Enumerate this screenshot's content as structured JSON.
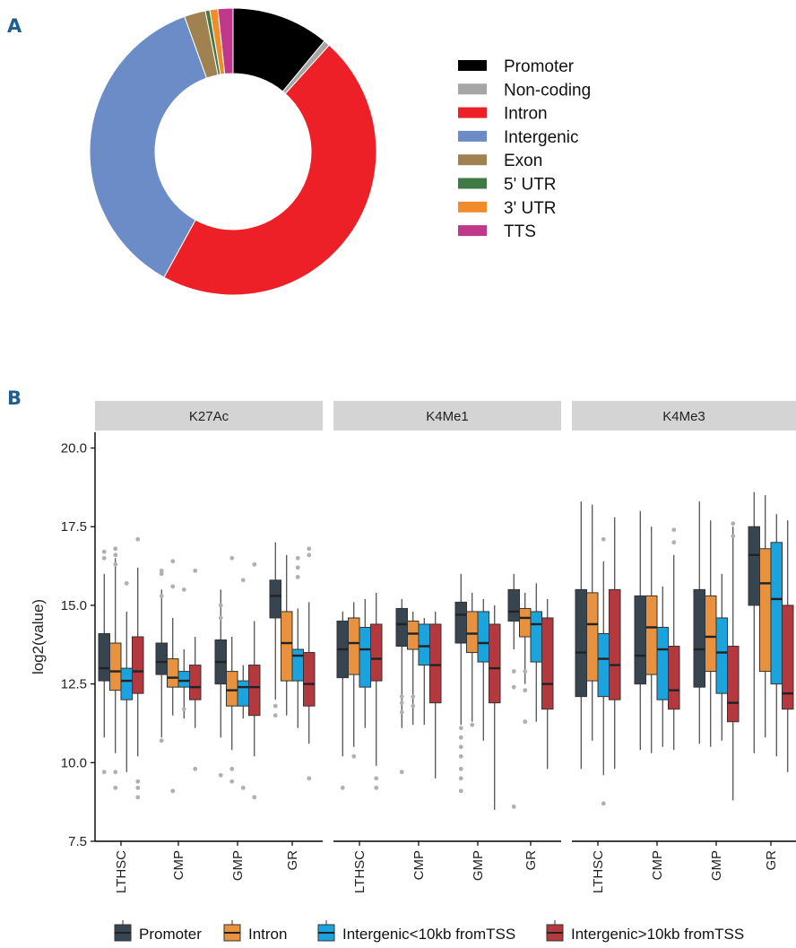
{
  "chart_data": [
    {
      "panel": "A",
      "type": "pie",
      "donut": true,
      "slices": [
        {
          "label": "Promoter",
          "value": 11.0,
          "color": "#000000"
        },
        {
          "label": "Non-coding",
          "value": 0.7,
          "color": "#a6a6a6"
        },
        {
          "label": "Intron",
          "value": 46.3,
          "color": "#ee2027"
        },
        {
          "label": "Intergenic",
          "value": 36.5,
          "color": "#6b8cc7"
        },
        {
          "label": "Exon",
          "value": 2.4,
          "color": "#a08250"
        },
        {
          "label": "5' UTR",
          "value": 0.5,
          "color": "#3f7a45"
        },
        {
          "label": "3' UTR",
          "value": 0.9,
          "color": "#f08c2a"
        },
        {
          "label": "TTS",
          "value": 1.7,
          "color": "#c0388a"
        }
      ],
      "legend_placement": "right"
    },
    {
      "panel": "B",
      "type": "box",
      "ylabel": "log2(value)",
      "ylim": [
        7.5,
        20.5
      ],
      "yticks": [
        7.5,
        10.0,
        12.5,
        15.0,
        17.5,
        20.0
      ],
      "facets": [
        "K27Ac",
        "K4Me1",
        "K4Me3"
      ],
      "categories": [
        "LTHSC",
        "CMP",
        "GMP",
        "GR"
      ],
      "series": [
        {
          "name": "Promoter",
          "color": "#36454f"
        },
        {
          "name": "Intron",
          "color": "#e8913e"
        },
        {
          "name": "Intergenic<10kb fromTSS",
          "color": "#1aa3dc"
        },
        {
          "name": "Intergenic>10kb fromTSS",
          "color": "#b3393f"
        }
      ],
      "boxes": [
        [
          [
            [
              10.8,
              12.6,
              13.0,
              14.1,
              16.0,
              [
                9.7,
                16.5,
                16.7
              ]
            ],
            [
              10.3,
              12.3,
              12.9,
              13.8,
              16.5,
              [
                9.2,
                9.7,
                16.3,
                16.6,
                16.8
              ]
            ],
            [
              9.7,
              12.0,
              12.6,
              13.0,
              14.8,
              [
                15.7
              ]
            ],
            [
              10.2,
              12.2,
              12.9,
              14.0,
              16.2,
              [
                8.9,
                9.2,
                9.4,
                17.1
              ]
            ]
          ],
          [
            [
              10.8,
              12.8,
              13.2,
              13.8,
              15.5,
              [
                10.7,
                15.3,
                16.0,
                16.1
              ]
            ],
            [
              11.5,
              12.4,
              12.7,
              13.3,
              14.6,
              [
                9.1,
                15.6,
                16.4
              ]
            ],
            [
              11.4,
              12.4,
              12.6,
              12.9,
              13.6,
              [
                11.7,
                15.5
              ]
            ],
            [
              11.1,
              12.0,
              12.4,
              13.1,
              14.0,
              [
                9.8,
                16.1
              ]
            ]
          ],
          [
            [
              10.8,
              12.5,
              13.2,
              13.9,
              15.5,
              [
                9.6,
                14.6,
                15.0
              ]
            ],
            [
              10.4,
              11.8,
              12.3,
              12.9,
              14.0,
              [
                9.4,
                9.8,
                16.5
              ]
            ],
            [
              11.4,
              11.8,
              12.4,
              12.6,
              13.1,
              [
                9.2,
                15.8
              ]
            ],
            [
              10.2,
              11.5,
              12.4,
              13.1,
              14.5,
              [
                8.9,
                16.3
              ]
            ]
          ],
          [
            [
              12.0,
              14.6,
              15.3,
              15.8,
              17.0,
              [
                11.5,
                11.8
              ]
            ],
            [
              11.5,
              12.6,
              13.8,
              14.8,
              16.6,
              []
            ],
            [
              11.1,
              12.6,
              13.4,
              13.6,
              14.9,
              [
                16.2,
                16.5,
                15.9
              ]
            ],
            [
              10.6,
              11.8,
              12.5,
              13.5,
              15.1,
              [
                9.5,
                16.6,
                16.8
              ]
            ]
          ]
        ],
        [
          [
            [
              10.2,
              12.7,
              13.6,
              14.5,
              14.8,
              [
                9.2
              ]
            ],
            [
              10.5,
              12.8,
              13.8,
              14.6,
              15.1,
              [
                10.2
              ]
            ],
            [
              11.1,
              12.4,
              13.6,
              14.3,
              15.2,
              []
            ],
            [
              9.9,
              12.6,
              13.3,
              14.4,
              15.4,
              [
                9.2,
                9.5
              ]
            ]
          ],
          [
            [
              11.1,
              13.7,
              14.4,
              14.9,
              15.2,
              [
                9.7,
                11.6,
                11.9,
                12.1
              ]
            ],
            [
              11.2,
              13.6,
              14.1,
              14.5,
              14.8,
              [
                11.8,
                12.1
              ]
            ],
            [
              11.2,
              13.1,
              13.7,
              14.4,
              14.6,
              []
            ],
            [
              9.5,
              11.9,
              13.1,
              14.4,
              14.8,
              []
            ]
          ],
          [
            [
              11.2,
              13.8,
              14.7,
              15.1,
              16.0,
              [
                9.1,
                9.5,
                9.8,
                10.2,
                10.5,
                10.8,
                11.1
              ]
            ],
            [
              11.3,
              13.5,
              14.1,
              14.8,
              15.4,
              [
                11.2
              ]
            ],
            [
              10.7,
              13.2,
              13.8,
              14.8,
              15.2,
              []
            ],
            [
              8.5,
              11.9,
              13.0,
              14.4,
              15.0,
              []
            ]
          ],
          [
            [
              13.6,
              14.5,
              14.8,
              15.5,
              16.0,
              [
                8.6,
                12.4,
                12.9
              ]
            ],
            [
              12.5,
              14.0,
              14.6,
              14.9,
              15.4,
              [
                11.3,
                12.3,
                12.9
              ]
            ],
            [
              11.3,
              13.2,
              14.4,
              14.8,
              15.7,
              []
            ],
            [
              9.8,
              11.7,
              12.5,
              14.6,
              15.2,
              []
            ]
          ]
        ],
        [
          [
            [
              9.8,
              12.1,
              13.5,
              15.5,
              18.3,
              []
            ],
            [
              10.7,
              12.6,
              14.4,
              15.4,
              18.2,
              []
            ],
            [
              9.6,
              12.1,
              13.3,
              14.1,
              16.4,
              [
                8.7,
                17.1
              ]
            ],
            [
              9.8,
              12.0,
              13.1,
              15.5,
              17.8,
              []
            ]
          ],
          [
            [
              10.4,
              12.5,
              13.4,
              15.3,
              18.0,
              []
            ],
            [
              10.3,
              12.8,
              14.3,
              15.3,
              17.5,
              []
            ],
            [
              10.5,
              12.0,
              13.6,
              14.3,
              15.6,
              []
            ],
            [
              10.4,
              11.7,
              12.3,
              13.7,
              16.6,
              [
                17.0,
                17.4
              ]
            ]
          ],
          [
            [
              10.6,
              12.4,
              13.6,
              15.5,
              18.3,
              []
            ],
            [
              10.5,
              12.9,
              14.0,
              15.3,
              17.7,
              []
            ],
            [
              10.7,
              12.2,
              13.5,
              14.6,
              16.0,
              []
            ],
            [
              8.8,
              11.3,
              11.9,
              13.7,
              17.5,
              [
                17.2,
                17.6
              ]
            ]
          ],
          [
            [
              10.3,
              15.0,
              16.6,
              17.5,
              18.6,
              []
            ],
            [
              10.8,
              12.9,
              15.7,
              16.8,
              18.5,
              []
            ],
            [
              10.2,
              12.5,
              15.2,
              17.0,
              17.9,
              []
            ],
            [
              9.7,
              11.7,
              12.2,
              15.0,
              17.7,
              []
            ]
          ]
        ]
      ],
      "legend_placement": "bottom"
    }
  ],
  "labels": {
    "panel_a": "A",
    "panel_b": "B"
  }
}
